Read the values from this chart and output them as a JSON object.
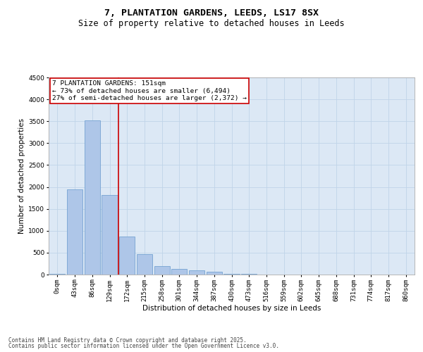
{
  "title1": "7, PLANTATION GARDENS, LEEDS, LS17 8SX",
  "title2": "Size of property relative to detached houses in Leeds",
  "xlabel": "Distribution of detached houses by size in Leeds",
  "ylabel": "Number of detached properties",
  "categories": [
    "0sqm",
    "43sqm",
    "86sqm",
    "129sqm",
    "172sqm",
    "215sqm",
    "258sqm",
    "301sqm",
    "344sqm",
    "387sqm",
    "430sqm",
    "473sqm",
    "516sqm",
    "559sqm",
    "602sqm",
    "645sqm",
    "688sqm",
    "731sqm",
    "774sqm",
    "817sqm",
    "860sqm"
  ],
  "values": [
    10,
    1950,
    3520,
    1820,
    860,
    460,
    190,
    130,
    90,
    60,
    20,
    10,
    5,
    3,
    2,
    1,
    1,
    0,
    0,
    0,
    0
  ],
  "bar_color": "#aec6e8",
  "bar_edge_color": "#6699cc",
  "vline_x": 3.5,
  "vline_color": "#cc0000",
  "annotation_text": "7 PLANTATION GARDENS: 151sqm\n← 73% of detached houses are smaller (6,494)\n27% of semi-detached houses are larger (2,372) →",
  "annotation_box_color": "#ffffff",
  "annotation_box_edge": "#cc0000",
  "background_color": "#dce8f5",
  "ylim": [
    0,
    4500
  ],
  "yticks": [
    0,
    500,
    1000,
    1500,
    2000,
    2500,
    3000,
    3500,
    4000,
    4500
  ],
  "footer1": "Contains HM Land Registry data © Crown copyright and database right 2025.",
  "footer2": "Contains public sector information licensed under the Open Government Licence v3.0.",
  "title1_fontsize": 9.5,
  "title2_fontsize": 8.5,
  "tick_fontsize": 6.5,
  "ylabel_fontsize": 7.5,
  "xlabel_fontsize": 7.5,
  "annotation_fontsize": 6.8,
  "footer_fontsize": 5.5
}
